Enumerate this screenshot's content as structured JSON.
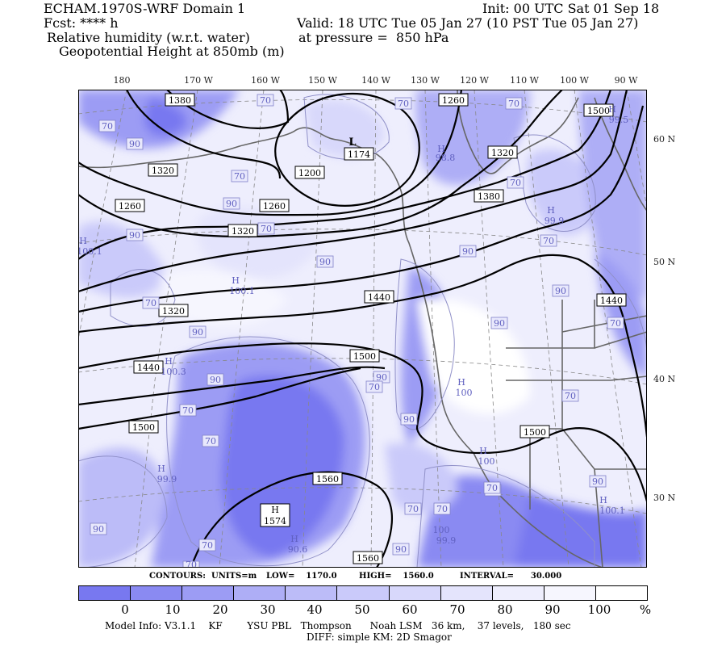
{
  "header": {
    "model_line": "ECHAM.1970S-WRF Domain 1",
    "init": "Init: 00 UTC Sat 01 Sep 18",
    "fcst": "Fcst: **** h",
    "valid": "Valid: 18 UTC Tue 05 Jan 27 (10 PST Tue 05 Jan 27)",
    "field1": "Relative humidity (w.r.t. water)",
    "pressure": "at pressure =  850 hPa",
    "field2": "Geopotential Height at 850mb (m)"
  },
  "axes": {
    "longitude_labels": [
      "180",
      "170 W",
      "160 W",
      "150 W",
      "140 W",
      "130 W",
      "120 W",
      "110 W",
      "100 W",
      "90 W"
    ],
    "latitude_labels": [
      "60 N",
      "50 N",
      "40 N",
      "30 N"
    ]
  },
  "contour_info": {
    "contours": "CONTOURS:",
    "units": "UNITS=m",
    "low": "LOW=    1170.0",
    "high": "HIGH=    1560.0",
    "interval": "INTERVAL=      30.000"
  },
  "height_labels": [
    "1380",
    "1320",
    "1260",
    "1200",
    "1174",
    "L",
    "1260",
    "1320",
    "1320",
    "1380",
    "1500",
    "1260",
    "1320",
    "1440",
    "1380",
    "1440",
    "1500",
    "1500",
    "1440",
    "1500",
    "1560",
    "1574",
    "H",
    "1560"
  ],
  "rh_labels": [
    "70",
    "70",
    "70",
    "99.5",
    "70",
    "70",
    "90",
    "90",
    "90",
    "70",
    "90",
    "70",
    "90",
    "70",
    "99.9",
    "70",
    "90",
    "70",
    "90",
    "70",
    "90",
    "90",
    "90",
    "90",
    "70",
    "70",
    "70",
    "70",
    "70",
    "90",
    "70",
    "90",
    "70",
    "70",
    "70",
    "70",
    "90",
    "70",
    "70",
    "90"
  ],
  "rh_max_labels": [
    "H",
    "98.8",
    "H",
    "100.1",
    "H",
    "100.1",
    "H",
    "100",
    "H",
    "99.9",
    "H",
    "99.9",
    "H",
    "90.6",
    "H",
    "100",
    "H",
    "100.3",
    "H",
    "100.1",
    "H",
    "100"
  ],
  "colorbar": {
    "ticks": [
      "0",
      "10",
      "20",
      "30",
      "40",
      "50",
      "60",
      "70",
      "80",
      "90",
      "100",
      "%"
    ],
    "colors": [
      "#7878f0",
      "#8a8af2",
      "#9c9cf4",
      "#aeaef6",
      "#bcbcf8",
      "#cacafa",
      "#d8d8fb",
      "#e4e4fc",
      "#eeeefd",
      "#f6f6fe",
      "#ffffff"
    ]
  },
  "footer": {
    "model_info": "Model Info: V3.1.1    KF        YSU PBL   Thompson      Noah LSM   36 km,    37 levels,   180 sec",
    "diff": "DIFF: simple KM: 2D Smagor"
  }
}
